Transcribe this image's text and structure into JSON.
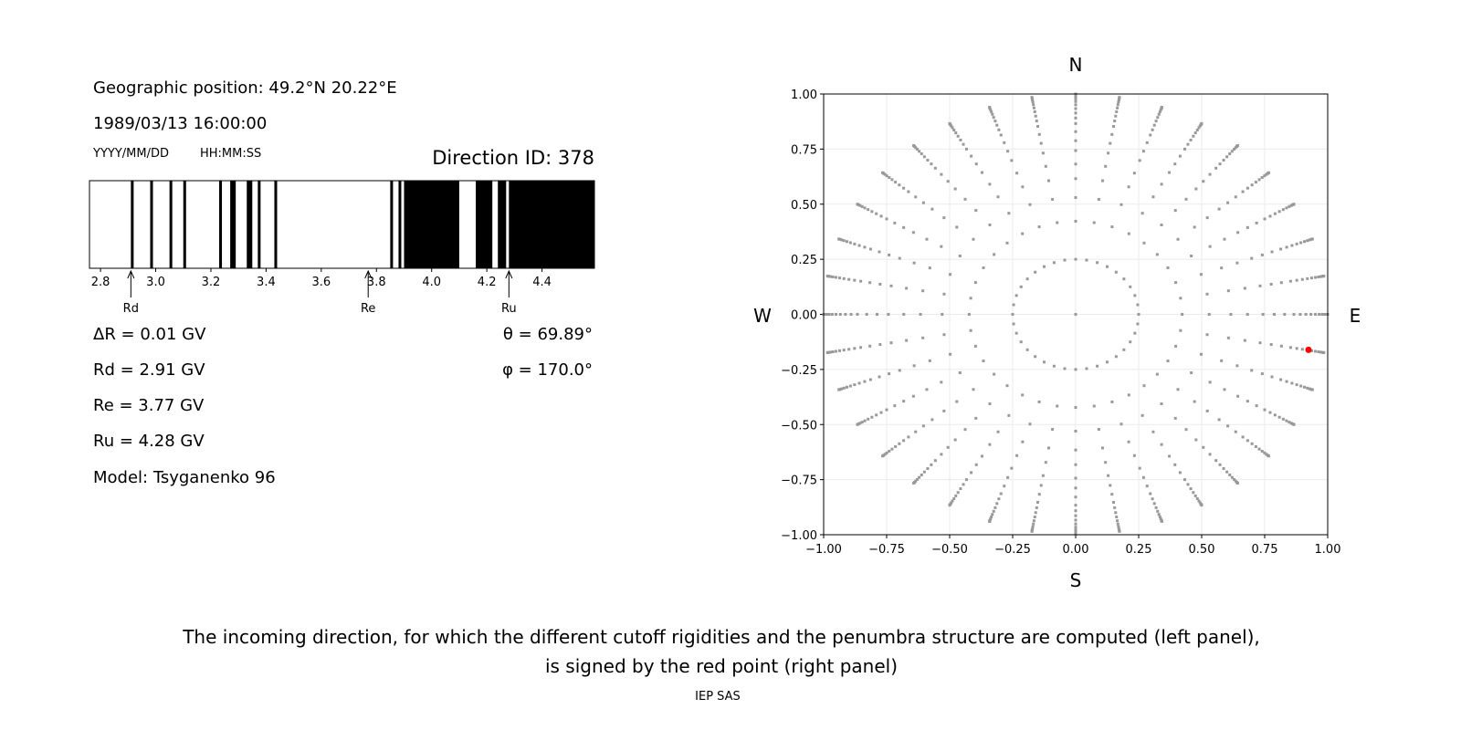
{
  "left_panel": {
    "geo_position": "Geographic position: 49.2°N 20.22°E",
    "datetime": "1989/03/13 16:00:00",
    "date_format": "YYYY/MM/DD",
    "time_format": "HH:MM:SS",
    "direction_id": "Direction ID: 378",
    "delta_r": "ΔR = 0.01 GV",
    "rd": "Rd = 2.91 GV",
    "re": "Re = 3.77 GV",
    "ru": "Ru = 4.28 GV",
    "model": "Model: Tsyganenko 96",
    "theta": "θ = 69.89°",
    "phi": "φ = 170.0°"
  },
  "caption": {
    "line1": "The incoming direction, for which the different cutoff rigidities and the penumbra structure are computed (left panel),",
    "line2": "is signed by the red point (right panel)"
  },
  "footer": "IEP SAS",
  "chart_data": [
    {
      "type": "bar",
      "description_kind": "penumbra",
      "xlim": [
        2.76,
        4.59
      ],
      "xticks": [
        2.8,
        3.0,
        3.2,
        3.4,
        3.6,
        3.8,
        4.0,
        4.2,
        4.4
      ],
      "xtick_labels": [
        "2.8",
        "3.0",
        "3.2",
        "3.4",
        "3.6",
        "3.8",
        "4.0",
        "4.2",
        "4.4"
      ],
      "forbidden_bands": [
        [
          2.91,
          2.92
        ],
        [
          2.98,
          2.99
        ],
        [
          3.05,
          3.06
        ],
        [
          3.1,
          3.11
        ],
        [
          3.23,
          3.24
        ],
        [
          3.27,
          3.29
        ],
        [
          3.33,
          3.35
        ],
        [
          3.37,
          3.38
        ],
        [
          3.43,
          3.44
        ],
        [
          3.85,
          3.86
        ],
        [
          3.88,
          3.89
        ],
        [
          3.9,
          4.1
        ],
        [
          4.16,
          4.22
        ],
        [
          4.24,
          4.27
        ],
        [
          4.28,
          4.59
        ]
      ],
      "band_color": "#000000",
      "markers": [
        {
          "label": "Rd",
          "value": 2.91
        },
        {
          "label": "Re",
          "value": 3.77
        },
        {
          "label": "Ru",
          "value": 4.28
        }
      ]
    },
    {
      "type": "scatter",
      "xlim": [
        -1,
        1
      ],
      "ylim": [
        -1,
        1
      ],
      "grid": true,
      "xticks": [
        -1,
        -0.75,
        -0.5,
        -0.25,
        0,
        0.25,
        0.5,
        0.75,
        1
      ],
      "xtick_labels": [
        "−1.00",
        "−0.75",
        "−0.50",
        "−0.25",
        "0.00",
        "0.25",
        "0.50",
        "0.75",
        "1.00"
      ],
      "yticks": [
        -1,
        -0.75,
        -0.5,
        -0.25,
        0,
        0.25,
        0.5,
        0.75,
        1
      ],
      "ytick_labels": [
        "−1.00",
        "−0.75",
        "−0.50",
        "−0.25",
        "0.00",
        "0.25",
        "0.50",
        "0.75",
        "1.00"
      ],
      "compass": {
        "north": "N",
        "south": "S",
        "west": "W",
        "east": "E"
      },
      "grid_points": {
        "center": [
          0,
          0
        ],
        "ring_radius": 0.25,
        "ring_count": 36,
        "ray_azimuth_step_deg": 10,
        "ray_zenith_deg": [
          25,
          32,
          38,
          43,
          48,
          52,
          56,
          60,
          63,
          66,
          69,
          72,
          75,
          78,
          81,
          84,
          87,
          90
        ],
        "color": "#999999"
      },
      "selected_point": {
        "x": 0.924,
        "y": -0.161,
        "color": "#ff0000"
      }
    }
  ]
}
